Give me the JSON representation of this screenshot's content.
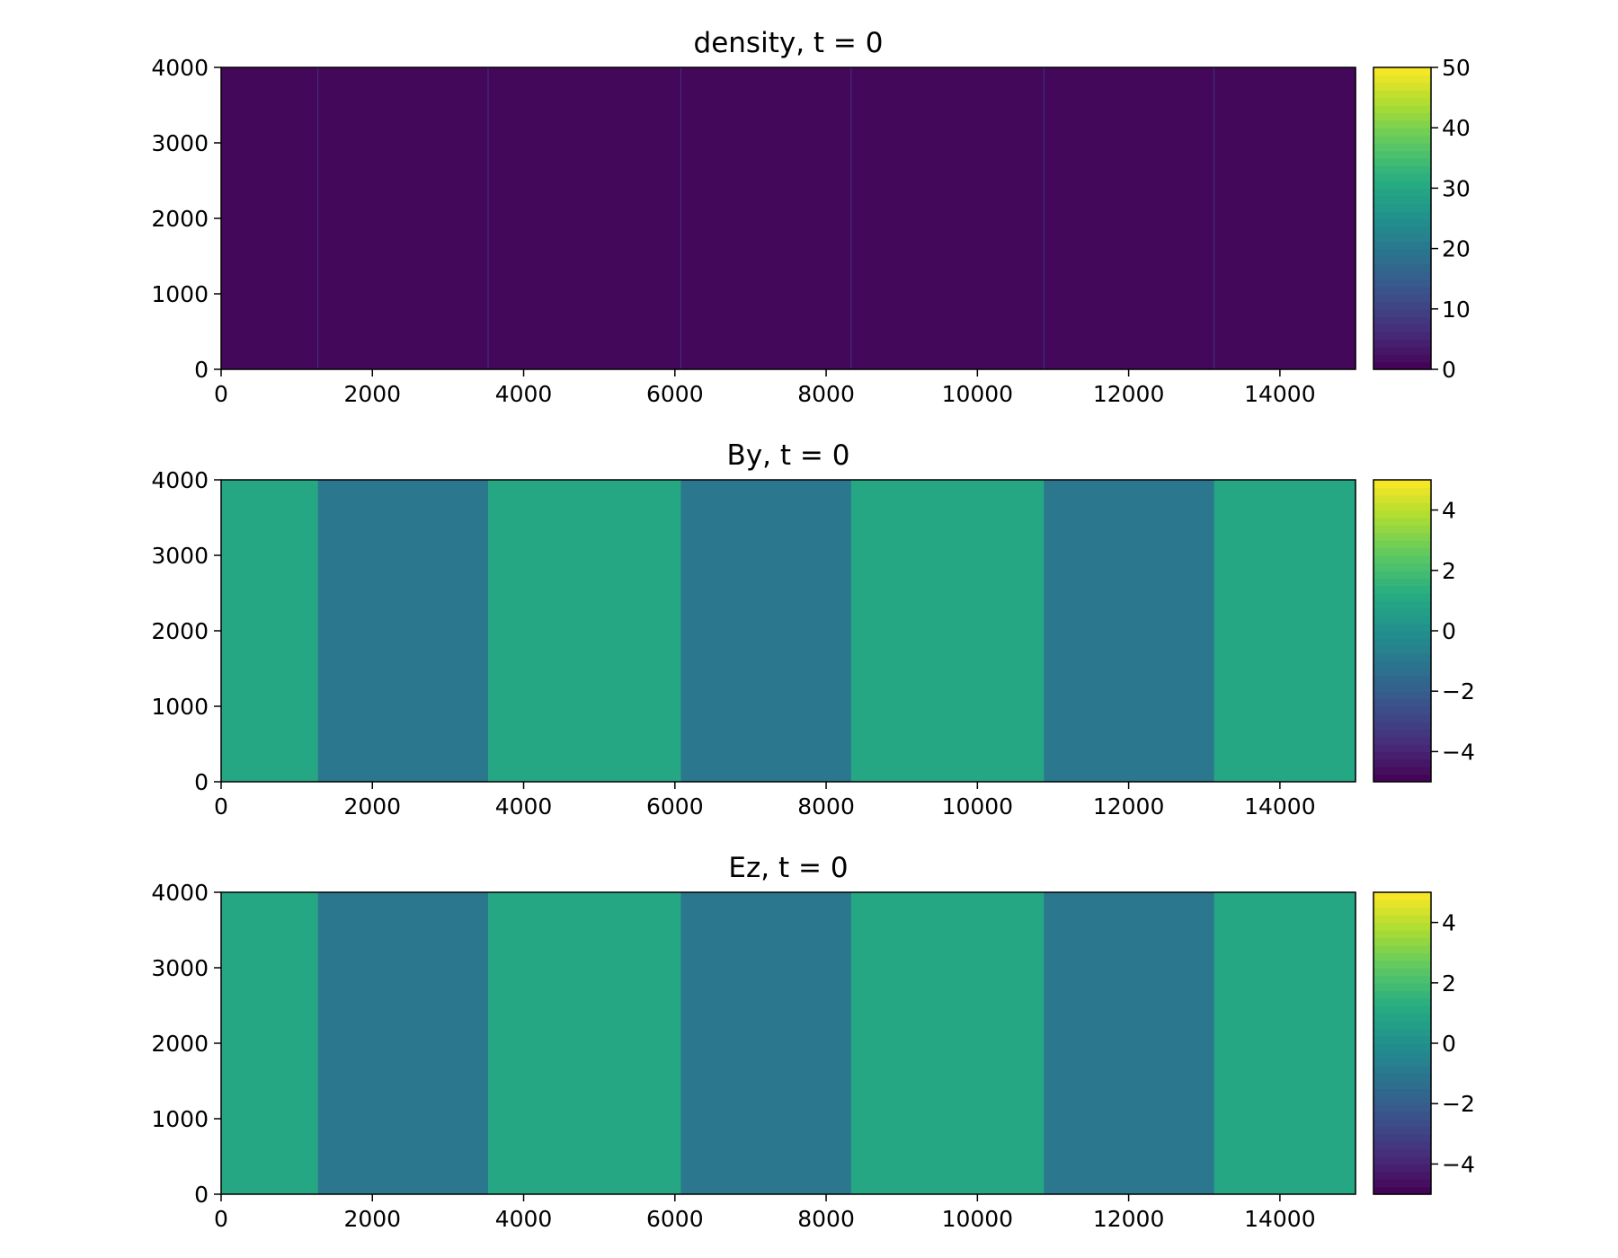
{
  "chart_data": [
    {
      "type": "heatmap",
      "title": "density, t = 0",
      "xlabel": "",
      "ylabel": "",
      "xlim": [
        0,
        15000
      ],
      "ylim": [
        0,
        4000
      ],
      "x_ticks": [
        "0",
        "2000",
        "4000",
        "6000",
        "8000",
        "10000",
        "12000",
        "14000"
      ],
      "y_ticks": [
        "0",
        "1000",
        "2000",
        "3000",
        "4000"
      ],
      "colorbar": {
        "min": 0,
        "max": 50,
        "ticks": [
          "0",
          "10",
          "20",
          "30",
          "40",
          "50"
        ],
        "tick_values": [
          0,
          10,
          20,
          30,
          40,
          50
        ]
      },
      "band_edges": [
        0,
        1280,
        3530,
        6080,
        8330,
        10880,
        13130,
        15000
      ],
      "band_values": [
        1,
        1,
        1,
        1,
        1,
        1,
        1
      ]
    },
    {
      "type": "heatmap",
      "title": "By, t = 0",
      "xlabel": "",
      "ylabel": "",
      "xlim": [
        0,
        15000
      ],
      "ylim": [
        0,
        4000
      ],
      "x_ticks": [
        "0",
        "2000",
        "4000",
        "6000",
        "8000",
        "10000",
        "12000",
        "14000"
      ],
      "y_ticks": [
        "0",
        "1000",
        "2000",
        "3000",
        "4000"
      ],
      "colorbar": {
        "min": -5,
        "max": 5,
        "ticks": [
          "−4",
          "−2",
          "0",
          "2",
          "4"
        ],
        "tick_values": [
          -4,
          -2,
          0,
          2,
          4
        ]
      },
      "band_edges": [
        0,
        1280,
        3530,
        6080,
        8330,
        10880,
        13130,
        15000
      ],
      "band_values": [
        1,
        -1,
        1,
        -1,
        1,
        -1,
        1
      ]
    },
    {
      "type": "heatmap",
      "title": "Ez, t = 0",
      "xlabel": "",
      "ylabel": "",
      "xlim": [
        0,
        15000
      ],
      "ylim": [
        0,
        4000
      ],
      "x_ticks": [
        "0",
        "2000",
        "4000",
        "6000",
        "8000",
        "10000",
        "12000",
        "14000"
      ],
      "y_ticks": [
        "0",
        "1000",
        "2000",
        "3000",
        "4000"
      ],
      "colorbar": {
        "min": -5,
        "max": 5,
        "ticks": [
          "−4",
          "−2",
          "0",
          "2",
          "4"
        ],
        "tick_values": [
          -4,
          -2,
          0,
          2,
          4
        ]
      },
      "band_edges": [
        0,
        1280,
        3530,
        6080,
        8330,
        10880,
        13130,
        15000
      ],
      "band_values": [
        1,
        -1,
        1,
        -1,
        1,
        -1,
        1
      ]
    }
  ]
}
